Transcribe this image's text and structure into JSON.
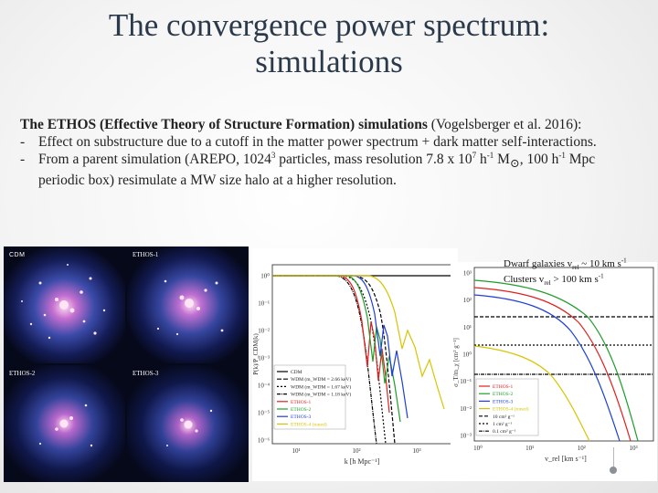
{
  "slide": {
    "title_line1": "The convergence power spectrum:",
    "title_line2": "simulations",
    "intro_bold": "The ETHOS (Effective Theory of Structure Formation) simulations",
    "intro_rest": " (Vogelsberger et al. 2016):",
    "bullet1": "Effect on substructure due to a cutoff in the matter power spectrum + dark matter self-interactions.",
    "bullet2_pre": "From a parent simulation (AREPO, 1024",
    "bullet2_exp": "3",
    "bullet2_mid": " particles, mass resolution 7.8 x 10",
    "bullet2_exp2": "7",
    "bullet2_mid2": " h",
    "bullet2_exp3": "-1",
    "bullet2_mid3": " M",
    "bullet2_sun": "⊙",
    "bullet2_mid4": ", 100 h",
    "bullet2_exp4": "-1",
    "bullet2_post": " Mpc periodic box) resimulate a MW size halo at a higher resolution.",
    "dash": "-"
  },
  "annotation": {
    "line1_pre": "Dwarf galaxies v",
    "line1_sub": "rel",
    "line1_post": " ~ 10 km s",
    "line1_sup": "-1",
    "line2_pre": "Clusters v",
    "line2_sub": "rel",
    "line2_post": " > 100 km s",
    "line2_sup": "-1"
  },
  "simulations": {
    "labels": [
      "CDM",
      "ETHOS-1",
      "ETHOS-2",
      "ETHOS-3"
    ]
  },
  "power_plot": {
    "ylabel": "P(k)/P_CDM(k)",
    "xlabel": "k [h Mpc⁻¹]",
    "yticks": [
      "10⁰",
      "10⁻¹",
      "10⁻²",
      "10⁻³",
      "10⁻⁴",
      "10⁻⁵",
      "10⁻⁶"
    ],
    "xticks": [
      "10¹",
      "10²",
      "10³"
    ],
    "legend": [
      {
        "name": "CDM",
        "color": "#000000",
        "dash": ""
      },
      {
        "name": "WDM (m_WDM = 2.66 keV)",
        "color": "#000000",
        "dash": "5,2"
      },
      {
        "name": "WDM (m_WDM = 1.67 keV)",
        "color": "#000000",
        "dash": "2,2"
      },
      {
        "name": "WDM (m_WDM = 1.18 keV)",
        "color": "#000000",
        "dash": "4,1,1,1"
      },
      {
        "name": "ETHOS-1",
        "color": "#e02020",
        "dash": ""
      },
      {
        "name": "ETHOS-2",
        "color": "#1f9e2c",
        "dash": ""
      },
      {
        "name": "ETHOS-3",
        "color": "#1f3fd6",
        "dash": ""
      },
      {
        "name": "ETHOS-4 (tuned)",
        "color": "#d8c400",
        "dash": ""
      }
    ]
  },
  "cross_plot": {
    "ylabel": "σ_T/m_χ [cm² g⁻¹]",
    "xlabel": "v_rel [km s⁻¹]",
    "yticks": [
      "10³",
      "10²",
      "10¹",
      "10⁰",
      "10⁻¹",
      "10⁻²",
      "10⁻³"
    ],
    "xticks": [
      "10⁰",
      "10¹",
      "10²",
      "10³"
    ],
    "legend": [
      {
        "name": "ETHOS-1",
        "color": "#e02020",
        "dash": ""
      },
      {
        "name": "ETHOS-2",
        "color": "#1f9e2c",
        "dash": ""
      },
      {
        "name": "ETHOS-3",
        "color": "#1f3fd6",
        "dash": ""
      },
      {
        "name": "ETHOS-4 (tuned)",
        "color": "#d8c400",
        "dash": ""
      },
      {
        "name": "10 cm² g⁻¹",
        "color": "#000000",
        "dash": "4,2"
      },
      {
        "name": "1 cm² g⁻¹",
        "color": "#000000",
        "dash": "2,2"
      },
      {
        "name": "0.1 cm² g⁻¹",
        "color": "#000000",
        "dash": "4,1,1,1"
      }
    ]
  }
}
